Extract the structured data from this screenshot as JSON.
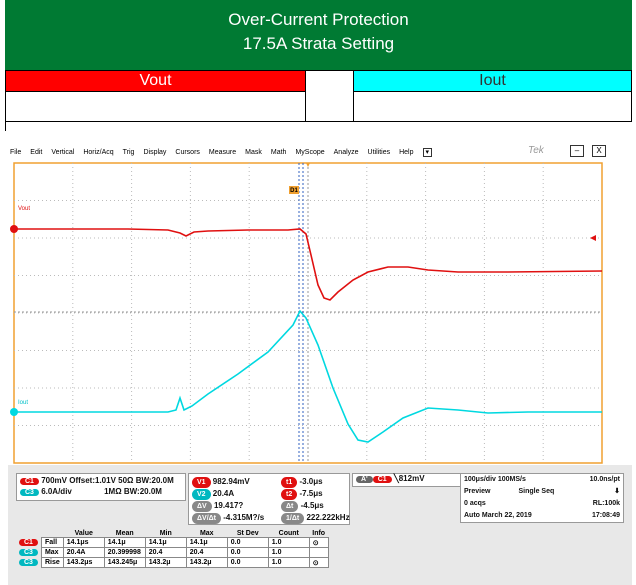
{
  "header": {
    "title": "Over-Current Protection",
    "subtitle": "17.5A Strata Setting"
  },
  "table": {
    "columns": [
      "Vout",
      "Iout"
    ]
  },
  "scope": {
    "menu": [
      "File",
      "Edit",
      "Vertical",
      "Horiz/Acq",
      "Trig",
      "Display",
      "Cursors",
      "Measure",
      "Mask",
      "Math",
      "MyScope",
      "Analyze",
      "Utilities",
      "Help"
    ],
    "brand": "Tek",
    "trace_labels": [
      "Vout",
      "Iout"
    ],
    "cursor_marker": "D1",
    "channels": [
      {
        "badge": "C1",
        "scale": "700mV",
        "offset": "Offset:1.01V",
        "impedance": "50Ω",
        "bandwidth": "BW:20.0M"
      },
      {
        "badge": "C3",
        "scale": "6.0A/div",
        "impedance": "1MΩ",
        "bandwidth": "BW:20.0M"
      }
    ],
    "amplitude_cursors": [
      {
        "badge": "V1",
        "value": "982.94mV"
      },
      {
        "badge": "V2",
        "value": "20.4A"
      },
      {
        "badge": "ΔV",
        "value": "19.417?"
      },
      {
        "badge": "ΔV/Δt",
        "value": "-4.315M?/s"
      }
    ],
    "time_cursors": [
      {
        "badge": "t1",
        "value": "-3.0μs"
      },
      {
        "badge": "t2",
        "value": "-7.5μs"
      },
      {
        "badge": "Δt",
        "value": "-4.5μs"
      },
      {
        "badge": "1/Δt",
        "value": "222.222kHz"
      }
    ],
    "trigger": {
      "source": "A'",
      "channel": "C1",
      "level": "812mV"
    },
    "acquisition": [
      [
        "100μs/div",
        "100MS/s",
        "10.0ns/pt"
      ],
      [
        "Preview",
        "Single Seq"
      ],
      [
        "0 acqs",
        "RL:100k"
      ],
      [
        "Auto",
        "March 22, 2019",
        "17:08:49"
      ]
    ],
    "measurements": {
      "headers": [
        "Value",
        "Mean",
        "Min",
        "Max",
        "St Dev",
        "Count",
        "Info"
      ],
      "rows": [
        [
          "C1",
          "Fall",
          "14.1μs",
          "14.1μ",
          "14.1μ",
          "14.1μ",
          "0.0",
          "1.0"
        ],
        [
          "C3",
          "Max",
          "20.4A",
          "20.399998",
          "20.4",
          "20.4",
          "0.0",
          "1.0"
        ],
        [
          "C3",
          "Rise",
          "143.2μs",
          "143.245μ",
          "143.2μ",
          "143.2μ",
          "0.0",
          "1.0"
        ]
      ]
    }
  }
}
